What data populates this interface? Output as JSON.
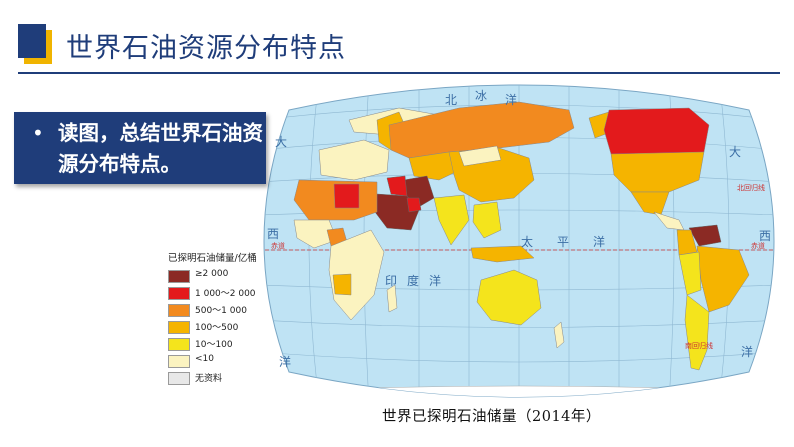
{
  "header": {
    "title": "世界石油资源分布特点",
    "accent_color": "#1f3d7a",
    "block_colors": [
      "#1f3d7a",
      "#f0b400"
    ]
  },
  "callout": {
    "bullet": "•",
    "text": "读图，总结世界石油资源分布特点。",
    "background": "#1f3d7a"
  },
  "map": {
    "caption": "世界已探明石油储量（2014年）",
    "ocean_labels": {
      "arctic": [
        "北",
        "冰",
        "洋"
      ],
      "pacific": [
        "太",
        "平",
        "洋"
      ],
      "indian": [
        "印",
        "度",
        "洋"
      ],
      "atlantic_left": [
        "大",
        "西",
        "洋"
      ],
      "atlantic_right": [
        "大",
        "西",
        "洋"
      ]
    },
    "line_labels": {
      "equator_left": "赤道",
      "equator_right": "赤道",
      "tropic_cancer": "北回归线",
      "tropic_capricorn": "南回归线"
    }
  },
  "legend": {
    "title": "已探明石油储量/亿桶",
    "items": [
      {
        "label": "≥2 000",
        "color": "#8b2a24"
      },
      {
        "label": "1 000～2 000",
        "color": "#e31a1c"
      },
      {
        "label": "500～1 000",
        "color": "#f28a1f"
      },
      {
        "label": "100～500",
        "color": "#f5b400"
      },
      {
        "label": "10～100",
        "color": "#f4e41c"
      },
      {
        "label": "<10",
        "color": "#fbf3c0"
      },
      {
        "label": "无资料",
        "color": "#e8e8e8"
      }
    ]
  }
}
